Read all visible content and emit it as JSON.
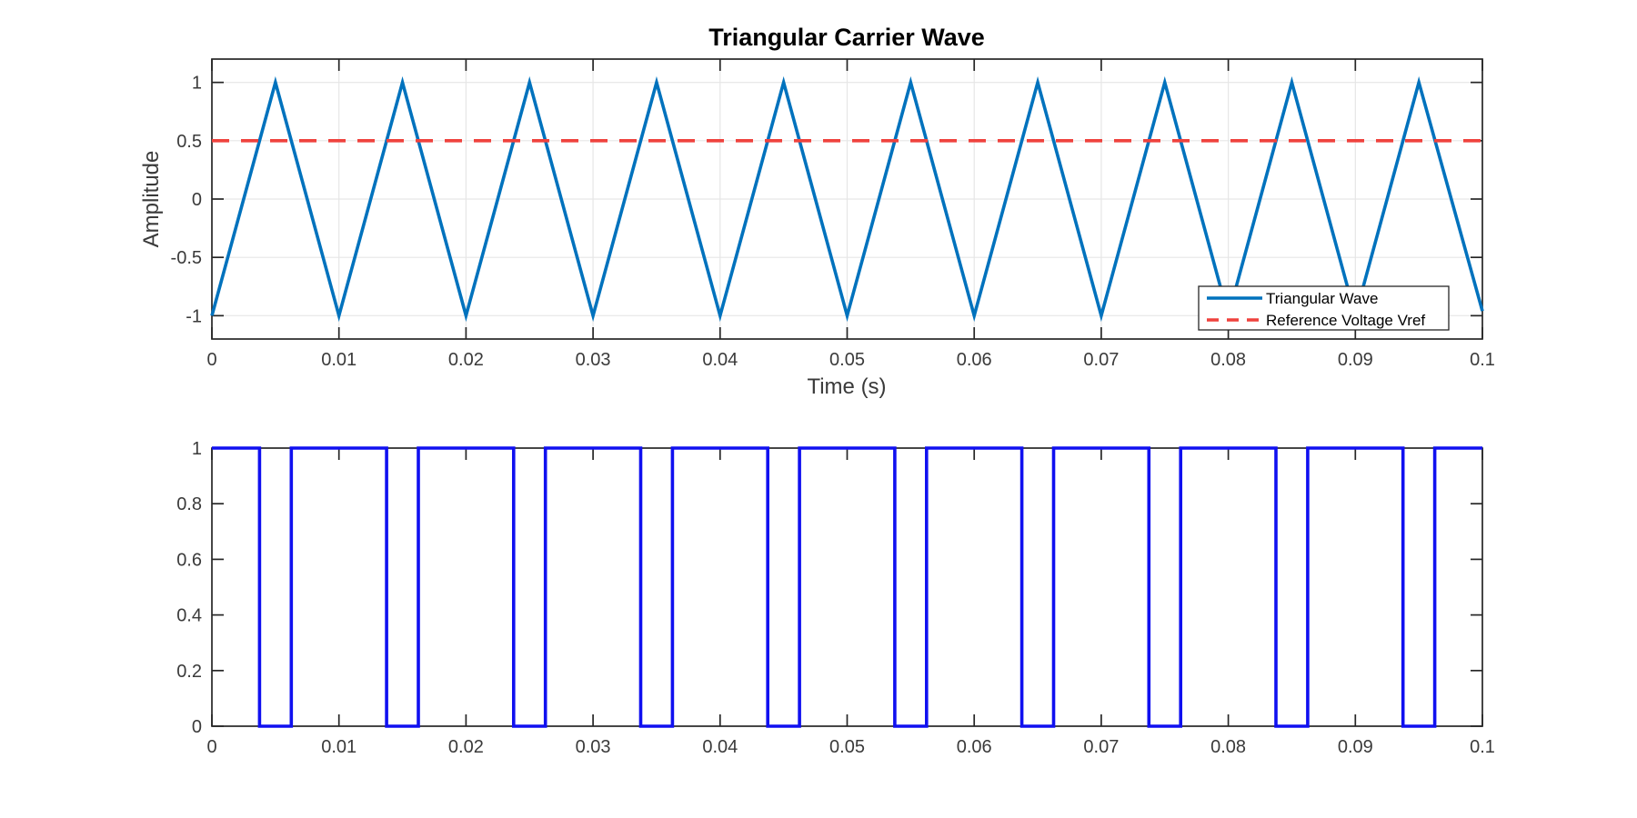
{
  "figure": {
    "background": "#FFFFFF",
    "axis_color": "#262626",
    "grid_color": "#E6E6E6",
    "tick_label_color": "#3A3A3A"
  },
  "chart_data": [
    {
      "type": "line",
      "title": "Triangular Carrier Wave",
      "xlabel": "Time (s)",
      "ylabel": "Amplitude",
      "xlim": [
        0,
        0.1
      ],
      "ylim": [
        -1.2,
        1.2
      ],
      "xticks": [
        0,
        0.01,
        0.02,
        0.03,
        0.04,
        0.05,
        0.06,
        0.07,
        0.08,
        0.09,
        0.1
      ],
      "xtick_labels": [
        "0",
        "0.01",
        "0.02",
        "0.03",
        "0.04",
        "0.05",
        "0.06",
        "0.07",
        "0.08",
        "0.09",
        "0.1"
      ],
      "yticks": [
        -1,
        -0.5,
        0,
        0.5,
        1
      ],
      "ytick_labels": [
        "-1",
        "-0.5",
        "0",
        "0.5",
        "1"
      ],
      "grid": true,
      "legend": {
        "position": "southeast",
        "entries": [
          {
            "label": "Triangular Wave",
            "color": "#0072BD",
            "style": "solid"
          },
          {
            "label": "Reference Voltage Vref",
            "color": "#EF423D",
            "style": "dashed"
          }
        ]
      },
      "series": [
        {
          "name": "Triangular Wave",
          "color": "#0072BD",
          "style": "solid",
          "width": 3.6,
          "points": [
            [
              0,
              -1
            ],
            [
              0.005,
              1
            ],
            [
              0.01,
              -1
            ],
            [
              0.015,
              1
            ],
            [
              0.02,
              -1
            ],
            [
              0.025,
              1
            ],
            [
              0.03,
              -1
            ],
            [
              0.035,
              1
            ],
            [
              0.04,
              -1
            ],
            [
              0.045,
              1
            ],
            [
              0.05,
              -1
            ],
            [
              0.055,
              1
            ],
            [
              0.06,
              -1
            ],
            [
              0.065,
              1
            ],
            [
              0.07,
              -1
            ],
            [
              0.075,
              1
            ],
            [
              0.08,
              -1
            ],
            [
              0.085,
              1
            ],
            [
              0.09,
              -1
            ],
            [
              0.095,
              1
            ],
            [
              0.1,
              -0.96
            ]
          ]
        },
        {
          "name": "Reference Voltage Vref",
          "color": "#EF423D",
          "style": "dashed",
          "width": 3.6,
          "points": [
            [
              0,
              0.5
            ],
            [
              0.1,
              0.5
            ]
          ]
        }
      ]
    },
    {
      "type": "line",
      "title": "",
      "xlabel": "",
      "ylabel": "",
      "xlim": [
        0,
        0.1
      ],
      "ylim": [
        0,
        1
      ],
      "xticks": [
        0,
        0.01,
        0.02,
        0.03,
        0.04,
        0.05,
        0.06,
        0.07,
        0.08,
        0.09,
        0.1
      ],
      "xtick_labels": [
        "0",
        "0.01",
        "0.02",
        "0.03",
        "0.04",
        "0.05",
        "0.06",
        "0.07",
        "0.08",
        "0.09",
        "0.1"
      ],
      "yticks": [
        0,
        0.2,
        0.4,
        0.6,
        0.8,
        1
      ],
      "ytick_labels": [
        "0",
        "0.2",
        "0.4",
        "0.6",
        "0.8",
        "1"
      ],
      "grid": false,
      "series": [
        {
          "color": "#1010F0",
          "style": "solid",
          "width": 3.6,
          "points": [
            [
              0,
              1
            ],
            [
              0.00375,
              1
            ],
            [
              0.00375,
              0
            ],
            [
              0.00625,
              0
            ],
            [
              0.00625,
              1
            ],
            [
              0.01375,
              1
            ],
            [
              0.01375,
              0
            ],
            [
              0.01625,
              0
            ],
            [
              0.01625,
              1
            ],
            [
              0.02375,
              1
            ],
            [
              0.02375,
              0
            ],
            [
              0.02625,
              0
            ],
            [
              0.02625,
              1
            ],
            [
              0.03375,
              1
            ],
            [
              0.03375,
              0
            ],
            [
              0.03625,
              0
            ],
            [
              0.03625,
              1
            ],
            [
              0.04375,
              1
            ],
            [
              0.04375,
              0
            ],
            [
              0.04625,
              0
            ],
            [
              0.04625,
              1
            ],
            [
              0.05375,
              1
            ],
            [
              0.05375,
              0
            ],
            [
              0.05625,
              0
            ],
            [
              0.05625,
              1
            ],
            [
              0.06375,
              1
            ],
            [
              0.06375,
              0
            ],
            [
              0.06625,
              0
            ],
            [
              0.06625,
              1
            ],
            [
              0.07375,
              1
            ],
            [
              0.07375,
              0
            ],
            [
              0.07625,
              0
            ],
            [
              0.07625,
              1
            ],
            [
              0.08375,
              1
            ],
            [
              0.08375,
              0
            ],
            [
              0.08625,
              0
            ],
            [
              0.08625,
              1
            ],
            [
              0.09375,
              1
            ],
            [
              0.09375,
              0
            ],
            [
              0.09625,
              0
            ],
            [
              0.09625,
              1
            ],
            [
              0.1,
              1
            ]
          ]
        }
      ]
    }
  ]
}
